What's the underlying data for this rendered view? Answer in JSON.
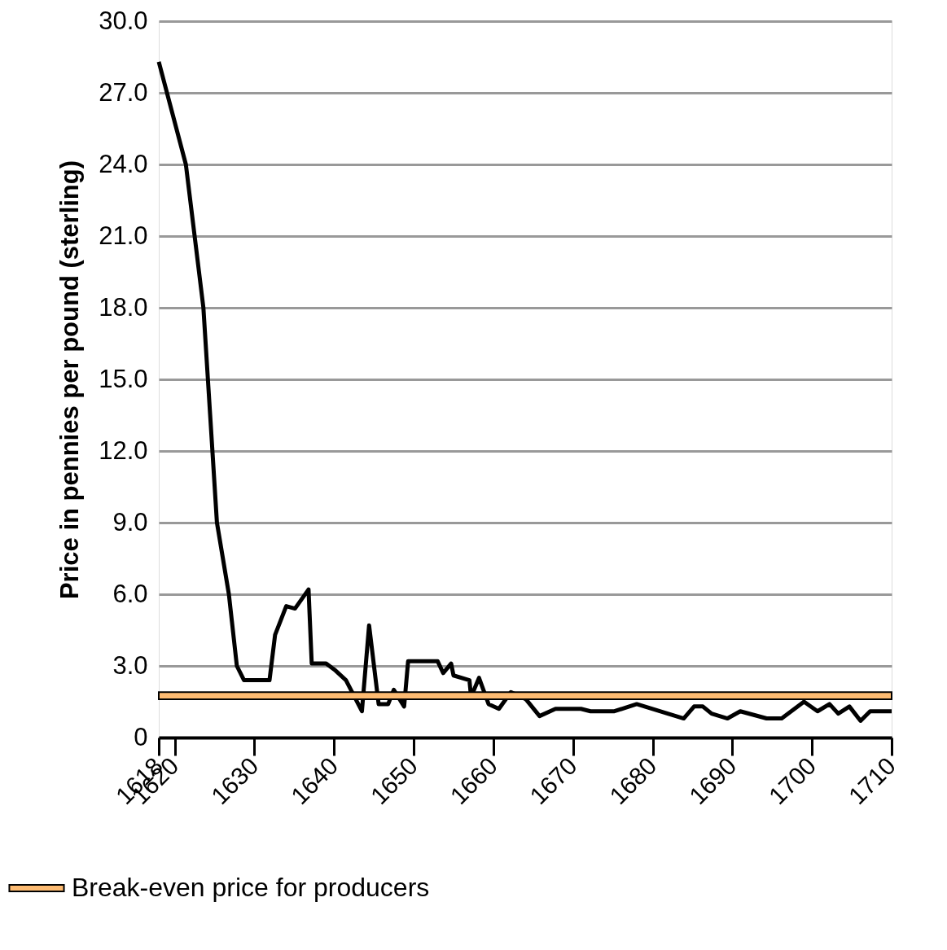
{
  "chart_data": {
    "type": "line",
    "ylabel": "Price in pennies per pound (sterling)",
    "xlim": [
      1618,
      1710
    ],
    "xticks": [
      1618,
      1620,
      1630,
      1640,
      1650,
      1660,
      1670,
      1680,
      1690,
      1700,
      1710
    ],
    "ylim": [
      0,
      30
    ],
    "yticks": [
      0,
      {
        "value": 3,
        "label": "3.0"
      },
      {
        "value": 6,
        "label": "6.0"
      },
      {
        "value": 9,
        "label": "9.0"
      },
      {
        "value": 12,
        "label": "12.0"
      },
      {
        "value": 15,
        "label": "15.0"
      },
      {
        "value": 18,
        "label": "18.0"
      },
      {
        "value": 21,
        "label": "21.0"
      },
      {
        "value": 24,
        "label": "24.0"
      },
      {
        "value": 27,
        "label": "27.0"
      },
      {
        "value": 30,
        "label": "30.0"
      }
    ],
    "grid": "y",
    "legend": "bottom left",
    "marker": "none",
    "line_style": "solid",
    "series": [
      {
        "color": "#000000",
        "x": [
          1618,
          1621.4,
          1623.6,
          1625.3,
          1626.8,
          1627.8,
          1628.7,
          1631.9,
          1632.6,
          1634,
          1635.1,
          1636.8,
          1637.2,
          1639,
          1640.2,
          1641.5,
          1643.5,
          1644.4,
          1645.6,
          1646.8,
          1647.5,
          1648.8,
          1649.3,
          1653,
          1653.7,
          1654.7,
          1655,
          1657,
          1657.2,
          1658.2,
          1659.4,
          1660.7,
          1662.2,
          1664.1,
          1665.8,
          1667.8,
          1671,
          1672.2,
          1675.2,
          1678,
          1681.9,
          1683.9,
          1685.2,
          1686.3,
          1687.4,
          1689.4,
          1691,
          1694.3,
          1696.2,
          1699,
          1700.7,
          1702.2,
          1703.3,
          1704.7,
          1706.1,
          1707.3,
          1710
        ],
        "values": [
          28.3,
          24,
          18,
          9,
          6,
          3,
          2.4,
          2.4,
          4.3,
          5.5,
          5.4,
          6.2,
          3.1,
          3.1,
          2.8,
          2.4,
          1.1,
          4.7,
          1.4,
          1.4,
          2.0,
          1.3,
          3.2,
          3.2,
          2.7,
          3.1,
          2.6,
          2.4,
          1.7,
          2.5,
          1.4,
          1.2,
          1.9,
          1.6,
          0.9,
          1.2,
          1.2,
          1.1,
          1.1,
          1.4,
          1.0,
          0.8,
          1.3,
          1.3,
          1.0,
          0.8,
          1.1,
          0.8,
          0.8,
          1.5,
          1.1,
          1.4,
          1.0,
          1.3,
          0.7,
          1.1,
          1.1
        ]
      }
    ],
    "bands": [
      {
        "axis": "y",
        "from": 1.6,
        "to": 1.9,
        "label": "Break-even price for producers",
        "color": "#fdbb72"
      }
    ]
  }
}
